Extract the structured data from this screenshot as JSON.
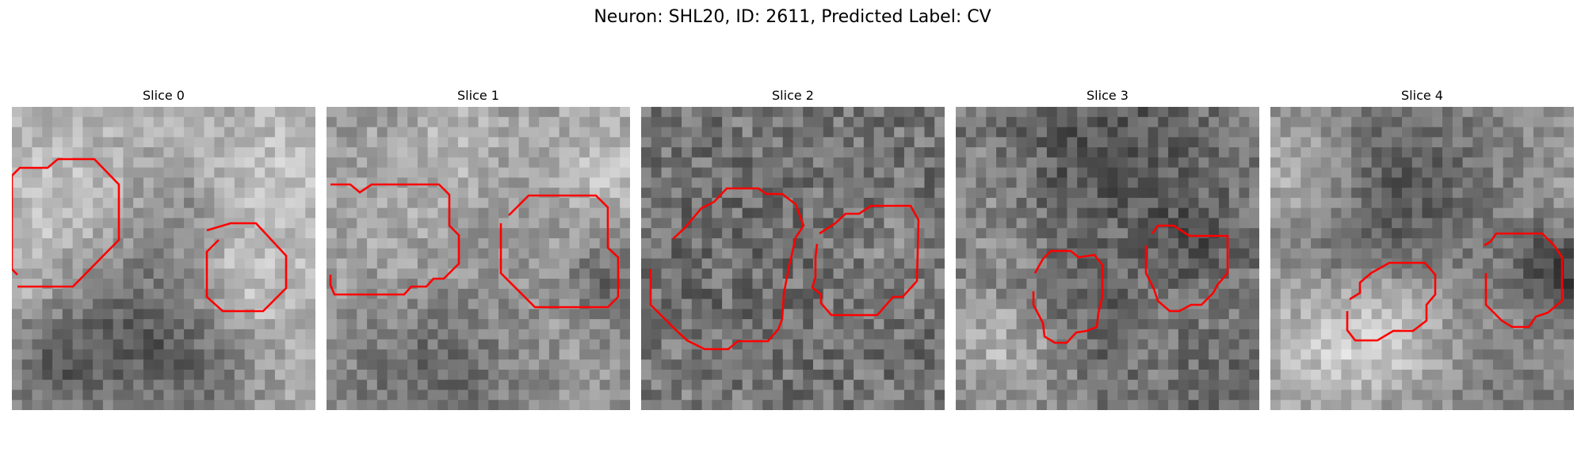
{
  "figure": {
    "title": "Neuron: SHL20, ID: 2611, Predicted Label: CV",
    "contour_color": "#ff0000",
    "colormap": "grayscale"
  },
  "slices": [
    {
      "title": "Slice 0",
      "contour_count": 2
    },
    {
      "title": "Slice 1",
      "contour_count": 2
    },
    {
      "title": "Slice 2",
      "contour_count": 2
    },
    {
      "title": "Slice 3",
      "contour_count": 2
    },
    {
      "title": "Slice 4",
      "contour_count": 2
    }
  ]
}
